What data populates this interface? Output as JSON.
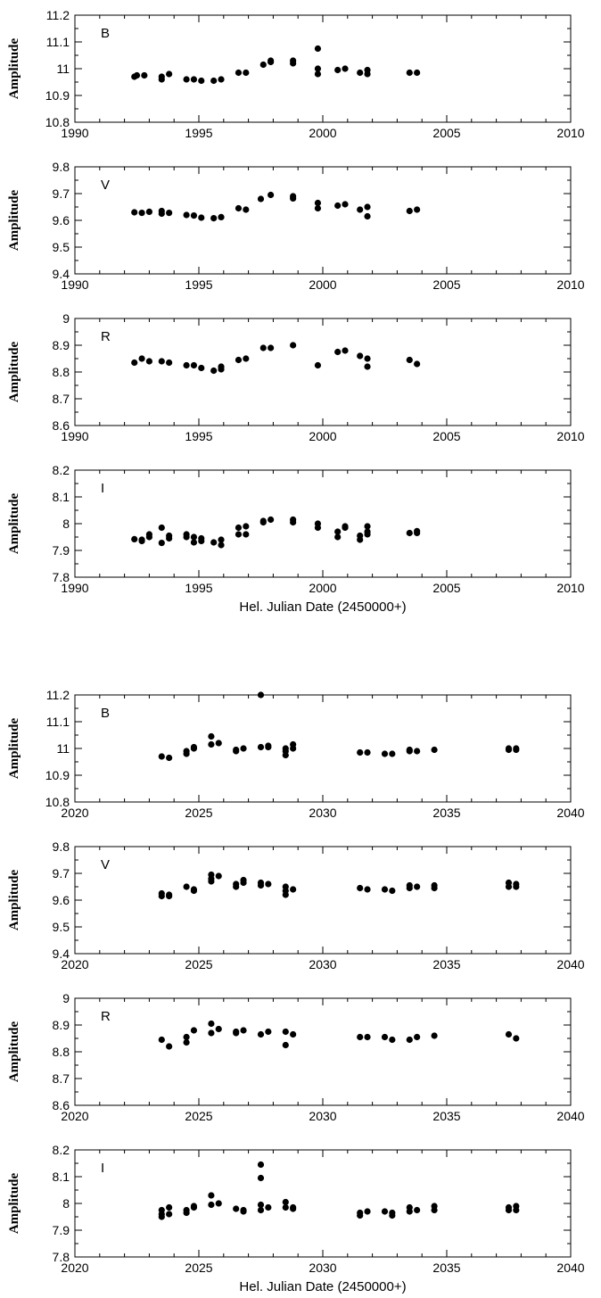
{
  "chart_data": [
    {
      "type": "scatter",
      "band": "B",
      "ylabel": "Amplitude",
      "xlabel": "",
      "xlim": [
        1990,
        2010
      ],
      "ylim": [
        10.8,
        11.2
      ],
      "xticks": [
        "1990",
        "1995",
        "2000",
        "2005",
        "2010"
      ],
      "yticks": [
        "10.8",
        "10.9",
        "11",
        "11.1",
        "11.2"
      ],
      "points": [
        [
          1992.4,
          10.97
        ],
        [
          1992.5,
          10.975
        ],
        [
          1992.8,
          10.975
        ],
        [
          1993.5,
          10.96
        ],
        [
          1993.5,
          10.97
        ],
        [
          1993.8,
          10.98
        ],
        [
          1994.5,
          10.96
        ],
        [
          1994.8,
          10.96
        ],
        [
          1995.1,
          10.955
        ],
        [
          1995.6,
          10.955
        ],
        [
          1995.9,
          10.96
        ],
        [
          1996.6,
          10.985
        ],
        [
          1996.9,
          10.985
        ],
        [
          1997.6,
          11.015
        ],
        [
          1997.9,
          11.025
        ],
        [
          1997.9,
          11.03
        ],
        [
          1998.8,
          11.02
        ],
        [
          1998.8,
          11.03
        ],
        [
          1999.8,
          11.075
        ],
        [
          1999.8,
          11.0
        ],
        [
          1999.8,
          10.98
        ],
        [
          2000.6,
          10.995
        ],
        [
          2000.9,
          11.0
        ],
        [
          2001.5,
          10.985
        ],
        [
          2001.8,
          10.98
        ],
        [
          2001.8,
          10.995
        ],
        [
          2003.5,
          10.985
        ],
        [
          2003.8,
          10.985
        ]
      ]
    },
    {
      "type": "scatter",
      "band": "V",
      "ylabel": "Amplitude",
      "xlabel": "",
      "xlim": [
        1990,
        2010
      ],
      "ylim": [
        9.4,
        9.8
      ],
      "xticks": [
        "1990",
        "1995",
        "2000",
        "2005",
        "2010"
      ],
      "yticks": [
        "9.4",
        "9.5",
        "9.6",
        "9.7",
        "9.8"
      ],
      "points": [
        [
          1992.4,
          9.63
        ],
        [
          1992.7,
          9.628
        ],
        [
          1993.0,
          9.632
        ],
        [
          1993.5,
          9.625
        ],
        [
          1993.5,
          9.635
        ],
        [
          1993.8,
          9.628
        ],
        [
          1994.5,
          9.62
        ],
        [
          1994.8,
          9.618
        ],
        [
          1995.1,
          9.61
        ],
        [
          1995.6,
          9.608
        ],
        [
          1995.9,
          9.612
        ],
        [
          1996.6,
          9.645
        ],
        [
          1996.9,
          9.64
        ],
        [
          1997.5,
          9.68
        ],
        [
          1997.9,
          9.695
        ],
        [
          1998.8,
          9.69
        ],
        [
          1998.8,
          9.682
        ],
        [
          1999.8,
          9.665
        ],
        [
          1999.8,
          9.645
        ],
        [
          2000.6,
          9.655
        ],
        [
          2000.9,
          9.66
        ],
        [
          2001.5,
          9.64
        ],
        [
          2001.8,
          9.65
        ],
        [
          2001.8,
          9.615
        ],
        [
          2003.5,
          9.635
        ],
        [
          2003.8,
          9.64
        ]
      ]
    },
    {
      "type": "scatter",
      "band": "R",
      "ylabel": "Amplitude",
      "xlabel": "",
      "xlim": [
        1990,
        2010
      ],
      "ylim": [
        8.6,
        9.0
      ],
      "xticks": [
        "1990",
        "1995",
        "2000",
        "2005",
        "2010"
      ],
      "yticks": [
        "8.6",
        "8.7",
        "8.8",
        "8.9",
        "9"
      ],
      "points": [
        [
          1992.4,
          8.835
        ],
        [
          1992.7,
          8.85
        ],
        [
          1993.0,
          8.84
        ],
        [
          1993.5,
          8.84
        ],
        [
          1993.8,
          8.835
        ],
        [
          1994.5,
          8.825
        ],
        [
          1994.8,
          8.825
        ],
        [
          1995.1,
          8.815
        ],
        [
          1995.6,
          8.805
        ],
        [
          1995.9,
          8.81
        ],
        [
          1995.9,
          8.82
        ],
        [
          1996.6,
          8.845
        ],
        [
          1996.9,
          8.85
        ],
        [
          1997.6,
          8.89
        ],
        [
          1997.9,
          8.89
        ],
        [
          1998.8,
          8.9
        ],
        [
          1999.8,
          8.825
        ],
        [
          2000.6,
          8.875
        ],
        [
          2000.9,
          8.88
        ],
        [
          2001.5,
          8.86
        ],
        [
          2001.8,
          8.85
        ],
        [
          2001.8,
          8.82
        ],
        [
          2003.5,
          8.845
        ],
        [
          2003.8,
          8.83
        ]
      ]
    },
    {
      "type": "scatter",
      "band": "I",
      "ylabel": "Amplitude",
      "xlabel": "Hel. Julian Date (2450000+)",
      "xlim": [
        1990,
        2010
      ],
      "ylim": [
        7.8,
        8.2
      ],
      "xticks": [
        "1990",
        "1995",
        "2000",
        "2005",
        "2010"
      ],
      "yticks": [
        "7.8",
        "7.9",
        "8",
        "8.1",
        "8.2"
      ],
      "points": [
        [
          1992.4,
          7.942
        ],
        [
          1992.7,
          7.94
        ],
        [
          1992.7,
          7.935
        ],
        [
          1993.0,
          7.95
        ],
        [
          1993.0,
          7.96
        ],
        [
          1993.5,
          7.985
        ],
        [
          1993.5,
          7.928
        ],
        [
          1993.8,
          7.945
        ],
        [
          1993.8,
          7.955
        ],
        [
          1994.5,
          7.96
        ],
        [
          1994.5,
          7.95
        ],
        [
          1994.8,
          7.95
        ],
        [
          1994.8,
          7.93
        ],
        [
          1995.1,
          7.935
        ],
        [
          1995.1,
          7.945
        ],
        [
          1995.6,
          7.93
        ],
        [
          1995.9,
          7.94
        ],
        [
          1995.9,
          7.92
        ],
        [
          1996.6,
          7.985
        ],
        [
          1996.6,
          7.96
        ],
        [
          1996.9,
          7.99
        ],
        [
          1996.9,
          7.96
        ],
        [
          1997.6,
          8.005
        ],
        [
          1997.6,
          8.01
        ],
        [
          1997.9,
          8.015
        ],
        [
          1998.8,
          8.015
        ],
        [
          1998.8,
          8.005
        ],
        [
          1999.8,
          8.0
        ],
        [
          1999.8,
          7.985
        ],
        [
          2000.6,
          7.97
        ],
        [
          2000.6,
          7.95
        ],
        [
          2000.9,
          7.985
        ],
        [
          2000.9,
          7.99
        ],
        [
          2001.5,
          7.94
        ],
        [
          2001.5,
          7.955
        ],
        [
          2001.8,
          7.99
        ],
        [
          2001.8,
          7.97
        ],
        [
          2001.8,
          7.96
        ],
        [
          2003.5,
          7.965
        ],
        [
          2003.8,
          7.965
        ],
        [
          2003.8,
          7.972
        ]
      ]
    },
    {
      "type": "scatter",
      "band": "B",
      "ylabel": "Amplitude",
      "xlabel": "",
      "xlim": [
        2020,
        2040
      ],
      "ylim": [
        10.8,
        11.2
      ],
      "xticks": [
        "2020",
        "2025",
        "2030",
        "2035",
        "2040"
      ],
      "yticks": [
        "10.8",
        "10.9",
        "11",
        "11.1",
        "11.2"
      ],
      "points": [
        [
          2023.5,
          10.97
        ],
        [
          2023.8,
          10.965
        ],
        [
          2024.5,
          10.99
        ],
        [
          2024.5,
          10.98
        ],
        [
          2024.8,
          11.0
        ],
        [
          2024.8,
          11.005
        ],
        [
          2025.5,
          11.045
        ],
        [
          2025.5,
          11.015
        ],
        [
          2025.8,
          11.02
        ],
        [
          2026.5,
          10.99
        ],
        [
          2026.5,
          10.995
        ],
        [
          2026.8,
          11.0
        ],
        [
          2027.5,
          11.2
        ],
        [
          2027.5,
          11.005
        ],
        [
          2027.8,
          11.005
        ],
        [
          2027.8,
          11.01
        ],
        [
          2028.5,
          10.99
        ],
        [
          2028.5,
          10.975
        ],
        [
          2028.5,
          11.0
        ],
        [
          2028.8,
          11.0
        ],
        [
          2028.8,
          11.015
        ],
        [
          2031.5,
          10.985
        ],
        [
          2031.8,
          10.985
        ],
        [
          2032.5,
          10.98
        ],
        [
          2032.8,
          10.98
        ],
        [
          2033.5,
          10.99
        ],
        [
          2033.5,
          10.995
        ],
        [
          2033.8,
          10.99
        ],
        [
          2034.5,
          10.995
        ],
        [
          2037.5,
          11.0
        ],
        [
          2037.5,
          10.995
        ],
        [
          2037.8,
          11.0
        ],
        [
          2037.8,
          10.995
        ]
      ]
    },
    {
      "type": "scatter",
      "band": "V",
      "ylabel": "Amplitude",
      "xlabel": "",
      "xlim": [
        2020,
        2040
      ],
      "ylim": [
        9.4,
        9.8
      ],
      "xticks": [
        "2020",
        "2025",
        "2030",
        "2035",
        "2040"
      ],
      "yticks": [
        "9.4",
        "9.5",
        "9.6",
        "9.7",
        "9.8"
      ],
      "points": [
        [
          2023.5,
          9.625
        ],
        [
          2023.5,
          9.615
        ],
        [
          2023.8,
          9.62
        ],
        [
          2023.8,
          9.615
        ],
        [
          2024.5,
          9.65
        ],
        [
          2024.8,
          9.64
        ],
        [
          2024.8,
          9.635
        ],
        [
          2025.5,
          9.695
        ],
        [
          2025.5,
          9.68
        ],
        [
          2025.5,
          9.67
        ],
        [
          2025.8,
          9.69
        ],
        [
          2026.5,
          9.66
        ],
        [
          2026.5,
          9.65
        ],
        [
          2026.8,
          9.675
        ],
        [
          2026.8,
          9.665
        ],
        [
          2027.5,
          9.665
        ],
        [
          2027.5,
          9.655
        ],
        [
          2027.8,
          9.66
        ],
        [
          2028.5,
          9.65
        ],
        [
          2028.5,
          9.635
        ],
        [
          2028.5,
          9.62
        ],
        [
          2028.8,
          9.64
        ],
        [
          2031.5,
          9.645
        ],
        [
          2031.8,
          9.64
        ],
        [
          2032.5,
          9.64
        ],
        [
          2032.8,
          9.635
        ],
        [
          2033.5,
          9.655
        ],
        [
          2033.5,
          9.645
        ],
        [
          2033.8,
          9.65
        ],
        [
          2034.5,
          9.655
        ],
        [
          2034.5,
          9.645
        ],
        [
          2037.5,
          9.665
        ],
        [
          2037.5,
          9.65
        ],
        [
          2037.8,
          9.66
        ],
        [
          2037.8,
          9.65
        ]
      ]
    },
    {
      "type": "scatter",
      "band": "R",
      "ylabel": "Amplitude",
      "xlabel": "",
      "xlim": [
        2020,
        2040
      ],
      "ylim": [
        8.6,
        9.0
      ],
      "xticks": [
        "2020",
        "2025",
        "2030",
        "2035",
        "2040"
      ],
      "yticks": [
        "8.6",
        "8.7",
        "8.8",
        "8.9",
        "9"
      ],
      "points": [
        [
          2023.5,
          8.845
        ],
        [
          2023.8,
          8.82
        ],
        [
          2024.5,
          8.855
        ],
        [
          2024.5,
          8.835
        ],
        [
          2024.8,
          8.88
        ],
        [
          2025.5,
          8.905
        ],
        [
          2025.5,
          8.87
        ],
        [
          2025.8,
          8.885
        ],
        [
          2026.5,
          8.875
        ],
        [
          2026.5,
          8.87
        ],
        [
          2026.8,
          8.88
        ],
        [
          2027.5,
          8.865
        ],
        [
          2027.8,
          8.875
        ],
        [
          2028.5,
          8.875
        ],
        [
          2028.5,
          8.825
        ],
        [
          2028.8,
          8.865
        ],
        [
          2031.5,
          8.855
        ],
        [
          2031.8,
          8.855
        ],
        [
          2032.5,
          8.855
        ],
        [
          2032.8,
          8.845
        ],
        [
          2033.5,
          8.845
        ],
        [
          2033.8,
          8.855
        ],
        [
          2034.5,
          8.86
        ],
        [
          2037.5,
          8.865
        ],
        [
          2037.8,
          8.85
        ]
      ]
    },
    {
      "type": "scatter",
      "band": "I",
      "ylabel": "Amplitude",
      "xlabel": "Hel. Julian Date (2450000+)",
      "xlim": [
        2020,
        2040
      ],
      "ylim": [
        7.8,
        8.2
      ],
      "xticks": [
        "2020",
        "2025",
        "2030",
        "2035",
        "2040"
      ],
      "yticks": [
        "7.8",
        "7.9",
        "8",
        "8.1",
        "8.2"
      ],
      "points": [
        [
          2023.5,
          7.975
        ],
        [
          2023.5,
          7.96
        ],
        [
          2023.5,
          7.95
        ],
        [
          2023.8,
          7.985
        ],
        [
          2023.8,
          7.96
        ],
        [
          2024.5,
          7.975
        ],
        [
          2024.5,
          7.965
        ],
        [
          2024.8,
          7.99
        ],
        [
          2024.8,
          7.985
        ],
        [
          2025.5,
          8.03
        ],
        [
          2025.5,
          7.995
        ],
        [
          2025.8,
          8.0
        ],
        [
          2026.5,
          7.98
        ],
        [
          2026.8,
          7.975
        ],
        [
          2026.8,
          7.97
        ],
        [
          2027.5,
          8.145
        ],
        [
          2027.5,
          8.095
        ],
        [
          2027.5,
          7.995
        ],
        [
          2027.5,
          7.975
        ],
        [
          2027.8,
          7.985
        ],
        [
          2028.5,
          8.005
        ],
        [
          2028.5,
          7.985
        ],
        [
          2028.8,
          7.985
        ],
        [
          2028.8,
          7.98
        ],
        [
          2031.5,
          7.965
        ],
        [
          2031.5,
          7.955
        ],
        [
          2031.8,
          7.97
        ],
        [
          2032.5,
          7.97
        ],
        [
          2032.8,
          7.965
        ],
        [
          2032.8,
          7.955
        ],
        [
          2033.5,
          7.985
        ],
        [
          2033.5,
          7.97
        ],
        [
          2033.8,
          7.975
        ],
        [
          2034.5,
          7.99
        ],
        [
          2034.5,
          7.975
        ],
        [
          2037.5,
          7.985
        ],
        [
          2037.5,
          7.975
        ],
        [
          2037.8,
          7.99
        ],
        [
          2037.8,
          7.975
        ]
      ]
    }
  ]
}
